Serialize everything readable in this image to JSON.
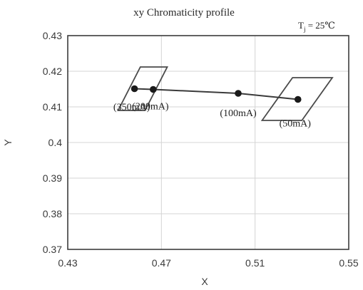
{
  "chart_data": {
    "type": "scatter",
    "title": "xy Chromaticity profile",
    "condition": {
      "main": "T",
      "sub": "j",
      "value": " = 25℃"
    },
    "xlabel": "X",
    "ylabel": "Y",
    "xlim": [
      0.43,
      0.55
    ],
    "ylim": [
      0.37,
      0.43
    ],
    "xticks": [
      "0.43",
      "0.47",
      "0.51",
      "0.55"
    ],
    "yticks": [
      "0.37",
      "0.38",
      "0.39",
      "0.4",
      "0.41",
      "0.42",
      "0.43"
    ],
    "grid": true,
    "series": [
      {
        "points": [
          {
            "x": 0.4585,
            "y": 0.4151,
            "label": "(350mA)"
          },
          {
            "x": 0.4665,
            "y": 0.4149,
            "label": "(200mA)"
          },
          {
            "x": 0.5028,
            "y": 0.4138,
            "label": "(100mA)"
          },
          {
            "x": 0.5283,
            "y": 0.4121,
            "label": "(50mA)"
          }
        ]
      }
    ],
    "regions": [
      {
        "vertices": [
          [
            0.4515,
            0.409
          ],
          [
            0.461,
            0.4212
          ],
          [
            0.4725,
            0.4212
          ],
          [
            0.463,
            0.409
          ]
        ]
      },
      {
        "vertices": [
          [
            0.513,
            0.4062
          ],
          [
            0.526,
            0.4182
          ],
          [
            0.543,
            0.4182
          ],
          [
            0.53,
            0.4062
          ]
        ]
      }
    ],
    "colors": {
      "line": "#3a3a3a",
      "marker": "#1a1a1a",
      "region": "#4a4a4a",
      "grid": "#d4d4d4",
      "frame": "#3c3c3c"
    }
  }
}
